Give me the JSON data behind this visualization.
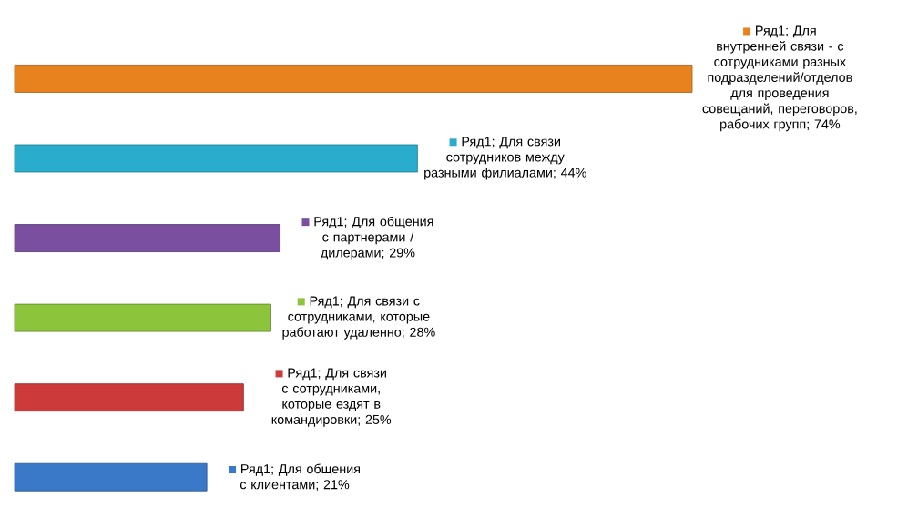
{
  "chart_data": {
    "type": "bar",
    "orientation": "horizontal",
    "categories": [
      null,
      null,
      null,
      null,
      null,
      null
    ],
    "values": [
      74,
      44,
      29,
      28,
      25,
      21
    ],
    "colors": [
      "#e8821e",
      "#2aaccc",
      "#7a4fa0",
      "#8cc43c",
      "#cc3a3a",
      "#3a78c8"
    ],
    "value_labels": [
      "Ряд1; Для внутренней связи - с сотрудниками разных подразделений/отделов для проведения совещаний, переговоров, рабочих групп; 74%",
      "Ряд1; Для связи сотрудников между разными филиалами; 44%",
      "Ряд1; Для общения с партнерами / дилерами; 29%",
      "Ряд1; Для связи с сотрудниками, которые работают удаленно; 28%",
      "Ряд1; Для связи с сотрудниками, которые ездят в командировки; 25%",
      "Ряд1; Для общения с клиентами; 21%"
    ],
    "xlim": [
      0,
      74
    ],
    "tick_labels": false
  }
}
